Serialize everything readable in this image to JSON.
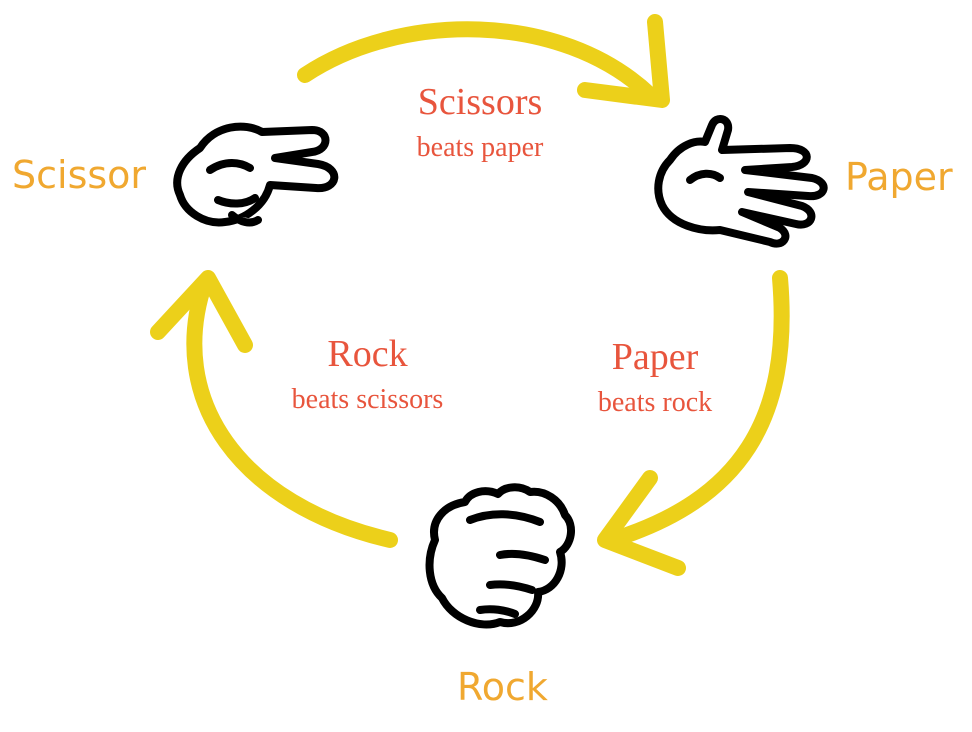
{
  "colors": {
    "arrow": "#ecd01a",
    "hand_label": "#f0a830",
    "rule_text": "#e8553d",
    "hand_outline": "#000000"
  },
  "hands": {
    "scissor": {
      "label": "Scissor",
      "icon": "scissors-hand-icon"
    },
    "paper": {
      "label": "Paper",
      "icon": "open-hand-icon"
    },
    "rock": {
      "label": "Rock",
      "icon": "fist-icon"
    }
  },
  "rules": {
    "scissors_paper": {
      "title": "Scissors",
      "subtitle": "beats paper"
    },
    "paper_rock": {
      "title": "Paper",
      "subtitle": "beats rock"
    },
    "rock_scissors": {
      "title": "Rock",
      "subtitle": "beats scissors"
    }
  }
}
